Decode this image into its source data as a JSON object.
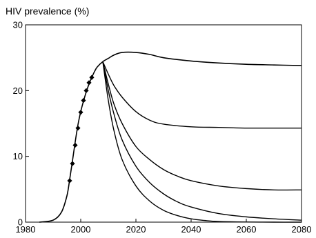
{
  "chart_data": {
    "type": "line",
    "title": "HIV prevalence (%)",
    "xlabel": "",
    "ylabel": "",
    "xlim": [
      1980,
      2080
    ],
    "ylim": [
      0,
      30
    ],
    "xticks": [
      1980,
      2000,
      2020,
      2040,
      2060,
      2080
    ],
    "yticks": [
      0,
      10,
      20,
      30
    ],
    "grid": false,
    "legend": "none",
    "series": [
      {
        "x": [
          1985,
          1990,
          1993,
          1995,
          1996,
          1997,
          1998,
          1999,
          2000,
          2001,
          2002,
          2003,
          2004,
          2005,
          2006,
          2008,
          2010,
          2012,
          2015,
          2020,
          2025,
          2030,
          2040,
          2050,
          2060,
          2070,
          2080
        ],
        "values": [
          0,
          0.3,
          1.5,
          4.0,
          6.5,
          9.3,
          12.2,
          14.8,
          16.8,
          18.4,
          19.8,
          21.0,
          22.0,
          22.9,
          23.6,
          24.4,
          24.9,
          25.4,
          25.8,
          25.8,
          25.5,
          25.0,
          24.5,
          24.2,
          24.0,
          23.9,
          23.8
        ]
      },
      {
        "x": [
          2008,
          2010,
          2012,
          2015,
          2020,
          2025,
          2030,
          2040,
          2050,
          2060,
          2070,
          2080
        ],
        "values": [
          24.4,
          22.5,
          20.8,
          19.0,
          16.8,
          15.5,
          14.9,
          14.5,
          14.4,
          14.3,
          14.3,
          14.3
        ]
      },
      {
        "x": [
          2008,
          2010,
          2012,
          2015,
          2020,
          2025,
          2030,
          2035,
          2040,
          2050,
          2060,
          2070,
          2080
        ],
        "values": [
          24.4,
          21.0,
          18.0,
          15.0,
          11.5,
          9.5,
          8.0,
          7.0,
          6.3,
          5.5,
          5.1,
          4.9,
          4.9
        ]
      },
      {
        "x": [
          2008,
          2010,
          2012,
          2015,
          2020,
          2025,
          2030,
          2035,
          2040,
          2050,
          2060,
          2070,
          2080
        ],
        "values": [
          24.4,
          20.0,
          16.5,
          12.5,
          8.5,
          6.0,
          4.3,
          3.1,
          2.3,
          1.3,
          0.8,
          0.5,
          0.3
        ]
      },
      {
        "x": [
          2008,
          2010,
          2012,
          2015,
          2020,
          2025,
          2030,
          2035,
          2040,
          2045,
          2050,
          2060,
          2070,
          2080
        ],
        "values": [
          24.4,
          18.5,
          14.0,
          9.5,
          5.5,
          3.2,
          1.8,
          1.0,
          0.5,
          0.25,
          0.1,
          0.02,
          0,
          0
        ]
      }
    ],
    "observed": {
      "x": [
        1996,
        1997,
        1998,
        1999,
        2000,
        2001,
        2002,
        2003,
        2004
      ],
      "values": [
        6.3,
        8.9,
        11.7,
        14.3,
        16.7,
        18.5,
        20.0,
        21.2,
        22.0
      ]
    }
  }
}
